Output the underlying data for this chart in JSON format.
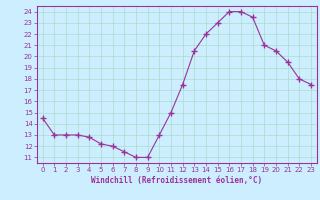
{
  "x": [
    0,
    1,
    2,
    3,
    4,
    5,
    6,
    7,
    8,
    9,
    10,
    11,
    12,
    13,
    14,
    15,
    16,
    17,
    18,
    19,
    20,
    21,
    22,
    23
  ],
  "y": [
    14.5,
    13.0,
    13.0,
    13.0,
    12.8,
    12.2,
    12.0,
    11.5,
    11.0,
    11.0,
    13.0,
    15.0,
    17.5,
    20.5,
    22.0,
    23.0,
    24.0,
    24.0,
    23.5,
    21.0,
    20.5,
    19.5,
    18.0,
    17.5
  ],
  "xlim": [
    -0.5,
    23.5
  ],
  "ylim": [
    10.5,
    24.5
  ],
  "yticks": [
    11,
    12,
    13,
    14,
    15,
    16,
    17,
    18,
    19,
    20,
    21,
    22,
    23,
    24
  ],
  "xticks": [
    0,
    1,
    2,
    3,
    4,
    5,
    6,
    7,
    8,
    9,
    10,
    11,
    12,
    13,
    14,
    15,
    16,
    17,
    18,
    19,
    20,
    21,
    22,
    23
  ],
  "xlabel": "Windchill (Refroidissement éolien,°C)",
  "line_color": "#993399",
  "marker_color": "#993399",
  "bg_color": "#cceeff",
  "grid_color": "#aaddcc",
  "axis_color": "#993399",
  "tick_color": "#993399",
  "label_color": "#993399"
}
